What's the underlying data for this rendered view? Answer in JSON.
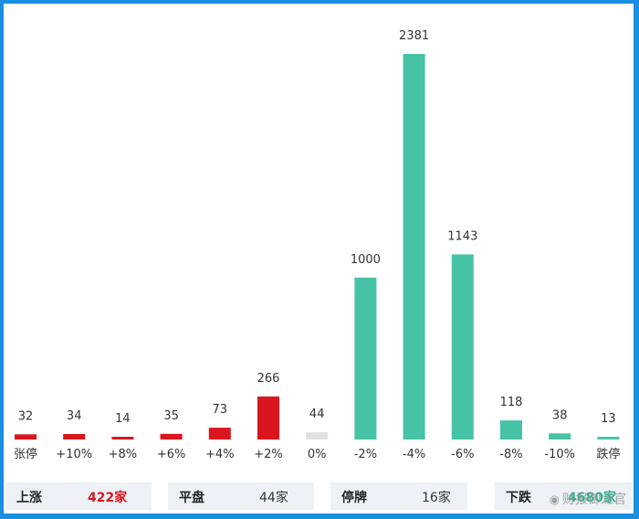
{
  "chart_data": {
    "type": "bar",
    "categories": [
      "张停",
      "+10%",
      "+8%",
      "+6%",
      "+4%",
      "+2%",
      "0%",
      "-2%",
      "-4%",
      "-6%",
      "-8%",
      "-10%",
      "跌停"
    ],
    "values": [
      32,
      34,
      14,
      35,
      73,
      266,
      44,
      1000,
      2381,
      1143,
      118,
      38,
      13
    ],
    "bar_colors": [
      "#d9161e",
      "#d9161e",
      "#d9161e",
      "#d9161e",
      "#d9161e",
      "#d9161e",
      "#e0e0e0",
      "#46c3a5",
      "#46c3a5",
      "#46c3a5",
      "#46c3a5",
      "#46c3a5",
      "#46c3a5"
    ],
    "ylim": [
      0,
      2381
    ],
    "grid": false,
    "title": "",
    "xlabel": "",
    "ylabel": ""
  },
  "summary": {
    "rise": {
      "label": "上涨",
      "value": "422家"
    },
    "flat": {
      "label": "平盘",
      "value": "44家"
    },
    "halt": {
      "label": "停牌",
      "value": "16家"
    },
    "fall": {
      "label": "下跌",
      "value": "4680家"
    }
  },
  "watermark": {
    "icon": "weibo-icon",
    "text": "财报御龙官"
  }
}
